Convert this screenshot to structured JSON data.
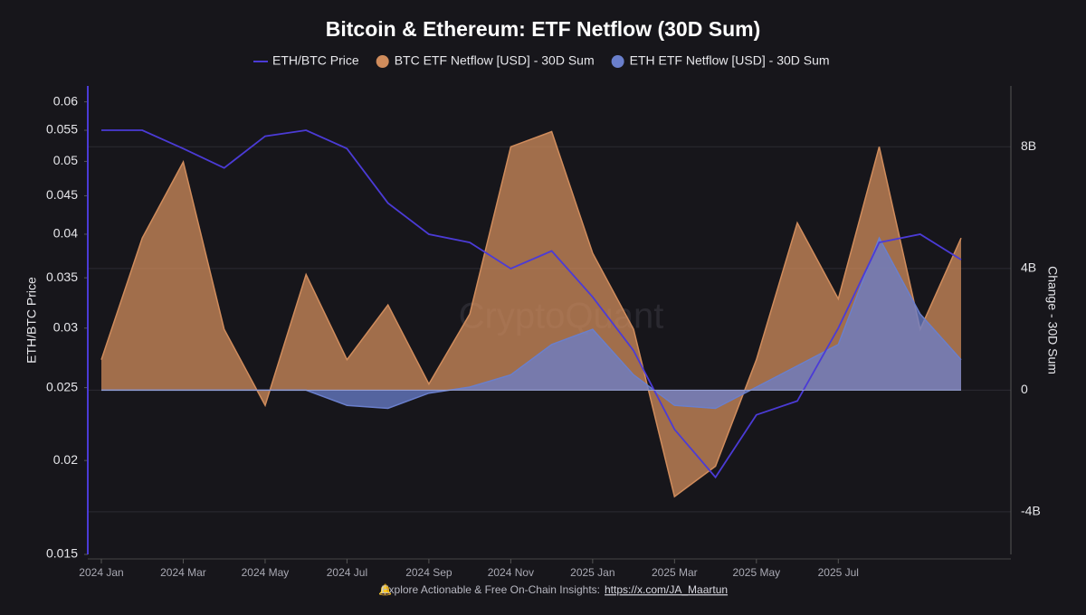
{
  "chart_data": {
    "type": "line",
    "title": "Bitcoin & Ethereum: ETF Netflow (30D Sum)",
    "watermark": "CryptoQuant",
    "y_label": "ETH/BTC Price",
    "y2_label": "Change - 30D Sum",
    "footer": {
      "text": "Explore Actionable & Free On-Chain Insights:",
      "link": "https://x.com/JA_Maartun"
    },
    "x": [
      "2024 Jan",
      null,
      "2024 Mar",
      null,
      "2024 May",
      null,
      "2024 Jul",
      null,
      "2024 Sep",
      null,
      "2024 Nov",
      null,
      "2025 Jan",
      null,
      "2025 Mar",
      null,
      "2025 May",
      null,
      "2025 Jul",
      null,
      null,
      null
    ],
    "ylog": true,
    "ylim": [
      0.015,
      0.063
    ],
    "yticks": [
      0.015,
      0.02,
      0.025,
      0.03,
      0.035,
      0.04,
      0.045,
      0.05,
      0.055,
      0.06
    ],
    "y2lim": [
      -5400000000,
      10000000000
    ],
    "y2ticks": [
      {
        "value": -4000000000,
        "label": "-4B"
      },
      0,
      {
        "value": 4000000000,
        "label": "4B"
      },
      {
        "value": 8000000000,
        "label": "8B"
      }
    ],
    "grid": true,
    "series": [
      {
        "name": "ETH/BTC Price",
        "color": "#4b3bd6",
        "style": "line",
        "values": [
          0.055,
          0.055,
          0.052,
          0.049,
          0.054,
          0.055,
          0.052,
          0.044,
          0.04,
          0.039,
          0.036,
          0.038,
          0.033,
          0.028,
          0.022,
          0.019,
          0.023,
          0.024,
          0.03,
          0.039,
          0.04,
          0.037
        ]
      },
      {
        "name": "BTC ETF Netflow [USD] - 30D Sum",
        "color": "#d08c5c",
        "style": "area",
        "axis": "y2",
        "values": [
          1000000000,
          5000000000,
          7500000000,
          2000000000,
          -500000000,
          3800000000,
          1000000000,
          2800000000,
          200000000,
          2500000000,
          8000000000,
          8500000000,
          4500000000,
          2000000000,
          -3500000000,
          -2500000000,
          1000000000,
          5500000000,
          3000000000,
          8000000000,
          2000000000,
          5000000000
        ]
      },
      {
        "name": "ETH ETF Netflow [USD] - 30D Sum",
        "color": "#6a7fcc",
        "style": "area",
        "axis": "y2",
        "values": [
          0,
          0,
          0,
          0,
          0,
          0,
          -500000000,
          -600000000,
          -100000000,
          100000000,
          500000000,
          1500000000,
          2000000000,
          500000000,
          -500000000,
          -600000000,
          100000000,
          800000000,
          1500000000,
          5000000000,
          2500000000,
          1000000000
        ]
      }
    ]
  }
}
